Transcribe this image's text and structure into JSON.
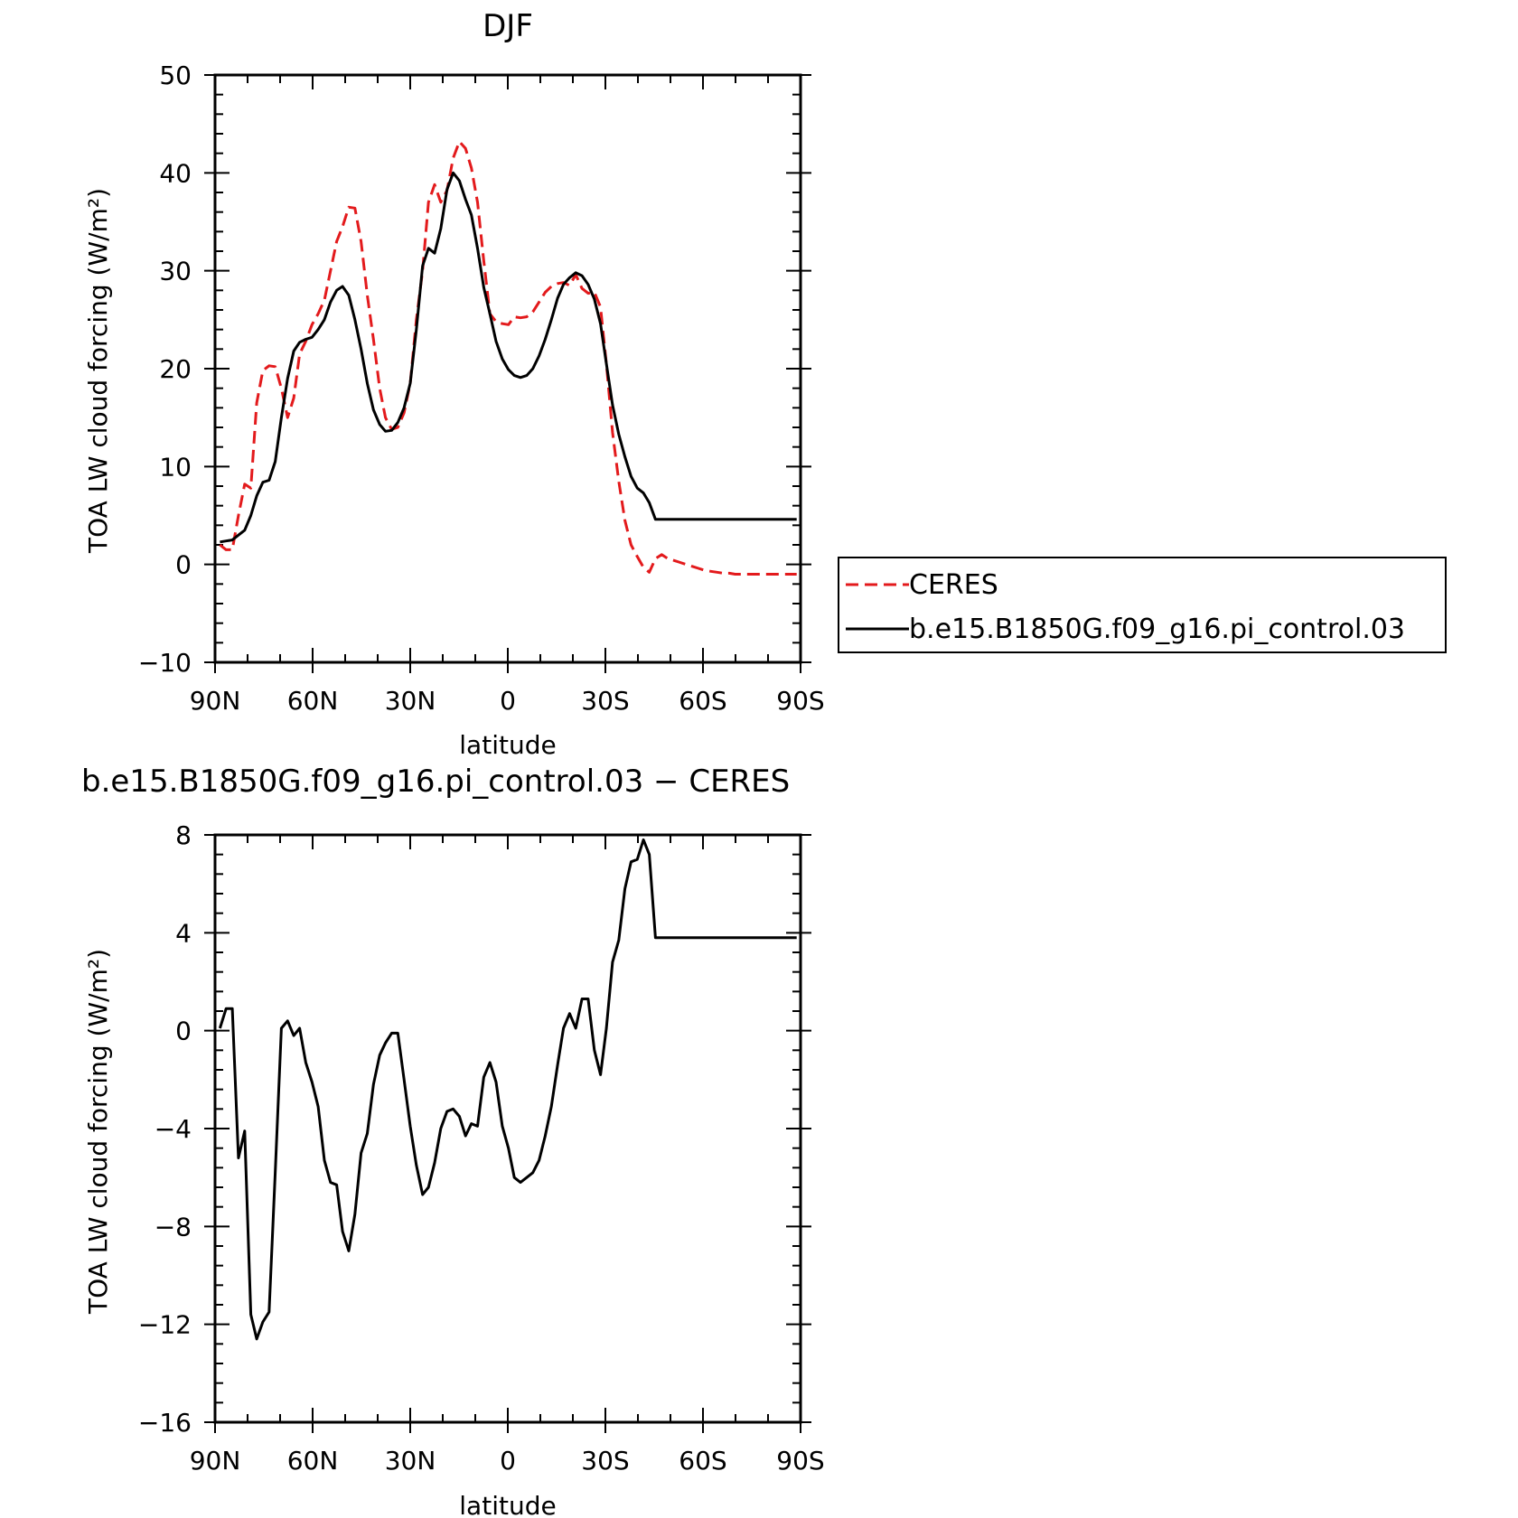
{
  "chart_data": [
    {
      "type": "line",
      "title": "DJF",
      "xlabel": "latitude",
      "ylabel": "TOA LW cloud forcing (W/m²)",
      "x_ticks": [
        "90N",
        "60N",
        "30N",
        "0",
        "30S",
        "60S",
        "90S"
      ],
      "y_ticks": [
        "50",
        "40",
        "30",
        "20",
        "10",
        "0",
        "−10"
      ],
      "x_range": [
        90,
        -90
      ],
      "ylim": [
        -10,
        50
      ],
      "legend": "right",
      "x": [
        88.5,
        86.6,
        84.7,
        82.8,
        80.9,
        79.0,
        77.2,
        75.3,
        73.4,
        71.5,
        69.6,
        67.7,
        65.8,
        64.0,
        62.1,
        60.2,
        58.3,
        56.4,
        54.5,
        52.6,
        50.8,
        48.9,
        47.0,
        45.1,
        43.2,
        41.3,
        39.4,
        37.6,
        35.7,
        33.8,
        31.9,
        30.0,
        28.1,
        26.2,
        24.4,
        22.5,
        20.6,
        18.7,
        16.8,
        14.9,
        13.0,
        11.2,
        9.3,
        7.4,
        5.5,
        3.6,
        1.7,
        -0.2,
        -2.0,
        -3.9,
        -5.8,
        -7.7,
        -9.6,
        -11.5,
        -13.4,
        -15.3,
        -17.1,
        -19.0,
        -20.9,
        -22.8,
        -24.7,
        -26.6,
        -28.5,
        -30.3,
        -32.2,
        -34.1,
        -36.0,
        -37.9,
        -39.8,
        -41.7,
        -43.5,
        -45.4,
        -47.3,
        -49.2,
        -51.1,
        -53.0,
        -54.9,
        -56.7,
        -58.6,
        -60.5,
        -62.4,
        -64.3,
        -66.2,
        -68.1,
        -69.9,
        -71.8,
        -73.7,
        -75.6,
        -77.5,
        -79.4,
        -81.3,
        -83.1,
        -85.0,
        -86.9,
        -88.8
      ],
      "series": [
        {
          "name": "CERES",
          "color": "#e31a1c",
          "dash": "dashed",
          "values": [
            2.0,
            1.5,
            1.5,
            5.0,
            8.2,
            7.8,
            16.5,
            19.8,
            20.3,
            20.2,
            18.0,
            15.0,
            17.0,
            21.5,
            22.8,
            24.5,
            25.6,
            27.0,
            30.0,
            33.0,
            34.5,
            36.5,
            36.4,
            33.0,
            27.5,
            23.0,
            18.0,
            15.0,
            13.8,
            14.0,
            15.5,
            18.5,
            25.0,
            30.0,
            37.0,
            38.8,
            37.0,
            38.2,
            41.5,
            43.2,
            42.5,
            40.5,
            37.0,
            31.0,
            25.6,
            24.8,
            24.6,
            24.5,
            25.3,
            25.2,
            25.3,
            25.8,
            26.8,
            27.8,
            28.4,
            28.7,
            28.8,
            28.5,
            29.6,
            28.2,
            27.7,
            27.8,
            26.3,
            20.5,
            13.5,
            8.5,
            4.5,
            2.0,
            0.8,
            -0.3,
            -0.8,
            0.6,
            1.0,
            0.6,
            0.4,
            0.2,
            0.0,
            -0.2,
            -0.4,
            -0.6,
            -0.7,
            -0.8,
            -0.9,
            -0.9,
            -1.0,
            -1.0,
            -1.0,
            -1.0,
            -1.0,
            -1.0,
            -1.0,
            -1.0,
            -1.0,
            -1.0,
            -1.0
          ]
        },
        {
          "name": "b.e15.B1850G.f09_g16.pi_control.03",
          "color": "#000000",
          "dash": "solid",
          "values": [
            2.3,
            2.4,
            2.5,
            3.0,
            3.5,
            5.0,
            7.0,
            8.4,
            8.6,
            10.5,
            15.0,
            19.0,
            21.8,
            22.7,
            23.0,
            23.2,
            24.0,
            25.0,
            26.8,
            28.0,
            28.4,
            27.5,
            25.0,
            22.0,
            18.5,
            15.8,
            14.3,
            13.6,
            13.7,
            14.5,
            16.0,
            18.5,
            24.0,
            30.5,
            32.3,
            31.8,
            34.3,
            38.3,
            40.0,
            39.2,
            37.3,
            35.7,
            32.3,
            28.3,
            25.6,
            22.8,
            21.0,
            19.9,
            19.3,
            19.1,
            19.3,
            20.0,
            21.3,
            23.0,
            25.0,
            27.2,
            28.6,
            29.3,
            29.8,
            29.5,
            28.6,
            27.1,
            24.6,
            20.5,
            16.3,
            13.3,
            11.0,
            9.0,
            7.8,
            7.3,
            6.3,
            4.6,
            4.6,
            4.6,
            4.6,
            4.6,
            4.6,
            4.6,
            4.6,
            4.6,
            4.6,
            4.6,
            4.6,
            4.6,
            4.6,
            4.6,
            4.6,
            4.6,
            4.6,
            4.6,
            4.6,
            4.6,
            4.6,
            4.6,
            4.6
          ]
        }
      ]
    },
    {
      "type": "line",
      "title": "b.e15.B1850G.f09_g16.pi_control.03 − CERES",
      "xlabel": "latitude",
      "ylabel": "TOA LW cloud forcing (W/m²)",
      "x_ticks": [
        "90N",
        "60N",
        "30N",
        "0",
        "30S",
        "60S",
        "90S"
      ],
      "y_ticks": [
        "8",
        "4",
        "0",
        "−4",
        "−8",
        "−12",
        "−16"
      ],
      "x_range": [
        90,
        -90
      ],
      "ylim": [
        -16,
        8
      ],
      "x": [
        88.5,
        86.6,
        84.7,
        82.8,
        80.9,
        79.0,
        77.2,
        75.3,
        73.4,
        71.5,
        69.6,
        67.7,
        65.8,
        64.0,
        62.1,
        60.2,
        58.3,
        56.4,
        54.5,
        52.6,
        50.8,
        48.9,
        47.0,
        45.1,
        43.2,
        41.3,
        39.4,
        37.6,
        35.7,
        33.8,
        31.9,
        30.0,
        28.1,
        26.2,
        24.4,
        22.5,
        20.6,
        18.7,
        16.8,
        14.9,
        13.0,
        11.2,
        9.3,
        7.4,
        5.5,
        3.6,
        1.7,
        -0.2,
        -2.0,
        -3.9,
        -5.8,
        -7.7,
        -9.6,
        -11.5,
        -13.4,
        -15.3,
        -17.1,
        -19.0,
        -20.9,
        -22.8,
        -24.7,
        -26.6,
        -28.5,
        -30.3,
        -32.2,
        -34.1,
        -36.0,
        -37.9,
        -39.8,
        -41.7,
        -43.5,
        -45.4,
        -47.3,
        -49.2,
        -51.1,
        -53.0,
        -54.9,
        -56.7,
        -58.6,
        -60.5,
        -62.4,
        -64.3,
        -66.2,
        -68.1,
        -69.9,
        -71.8,
        -73.7,
        -75.6,
        -77.5,
        -79.4,
        -81.3,
        -83.1,
        -85.0,
        -86.9,
        -88.8
      ],
      "series": [
        {
          "name": "",
          "color": "#000000",
          "dash": "solid",
          "values": [
            0.1,
            0.9,
            0.9,
            -5.2,
            -4.1,
            -11.6,
            -12.6,
            -11.9,
            -11.5,
            -5.8,
            0.1,
            0.4,
            -0.2,
            0.1,
            -1.3,
            -2.1,
            -3.1,
            -5.3,
            -6.2,
            -6.3,
            -8.2,
            -9.0,
            -7.5,
            -5.0,
            -4.2,
            -2.2,
            -1.0,
            -0.5,
            -0.1,
            -0.1,
            -2.0,
            -3.9,
            -5.5,
            -6.7,
            -6.4,
            -5.4,
            -4.0,
            -3.3,
            -3.2,
            -3.5,
            -4.3,
            -3.8,
            -3.9,
            -1.9,
            -1.3,
            -2.1,
            -3.9,
            -4.8,
            -6.0,
            -6.2,
            -6.0,
            -5.8,
            -5.3,
            -4.3,
            -3.1,
            -1.4,
            0.1,
            0.7,
            0.1,
            1.3,
            1.3,
            -0.8,
            -1.8,
            0.1,
            2.8,
            3.7,
            5.8,
            6.9,
            7.0,
            7.8,
            7.2,
            3.8,
            3.8,
            3.8,
            3.8,
            3.8,
            3.8,
            3.8,
            3.8,
            3.8,
            3.8,
            3.8,
            3.8,
            3.8,
            3.8,
            3.8,
            3.8,
            3.8,
            3.8,
            3.8,
            3.8,
            3.8,
            3.8,
            3.8,
            3.8
          ]
        }
      ]
    }
  ],
  "legend": {
    "entries": [
      "CERES",
      "b.e15.B1850G.f09_g16.pi_control.03"
    ]
  }
}
